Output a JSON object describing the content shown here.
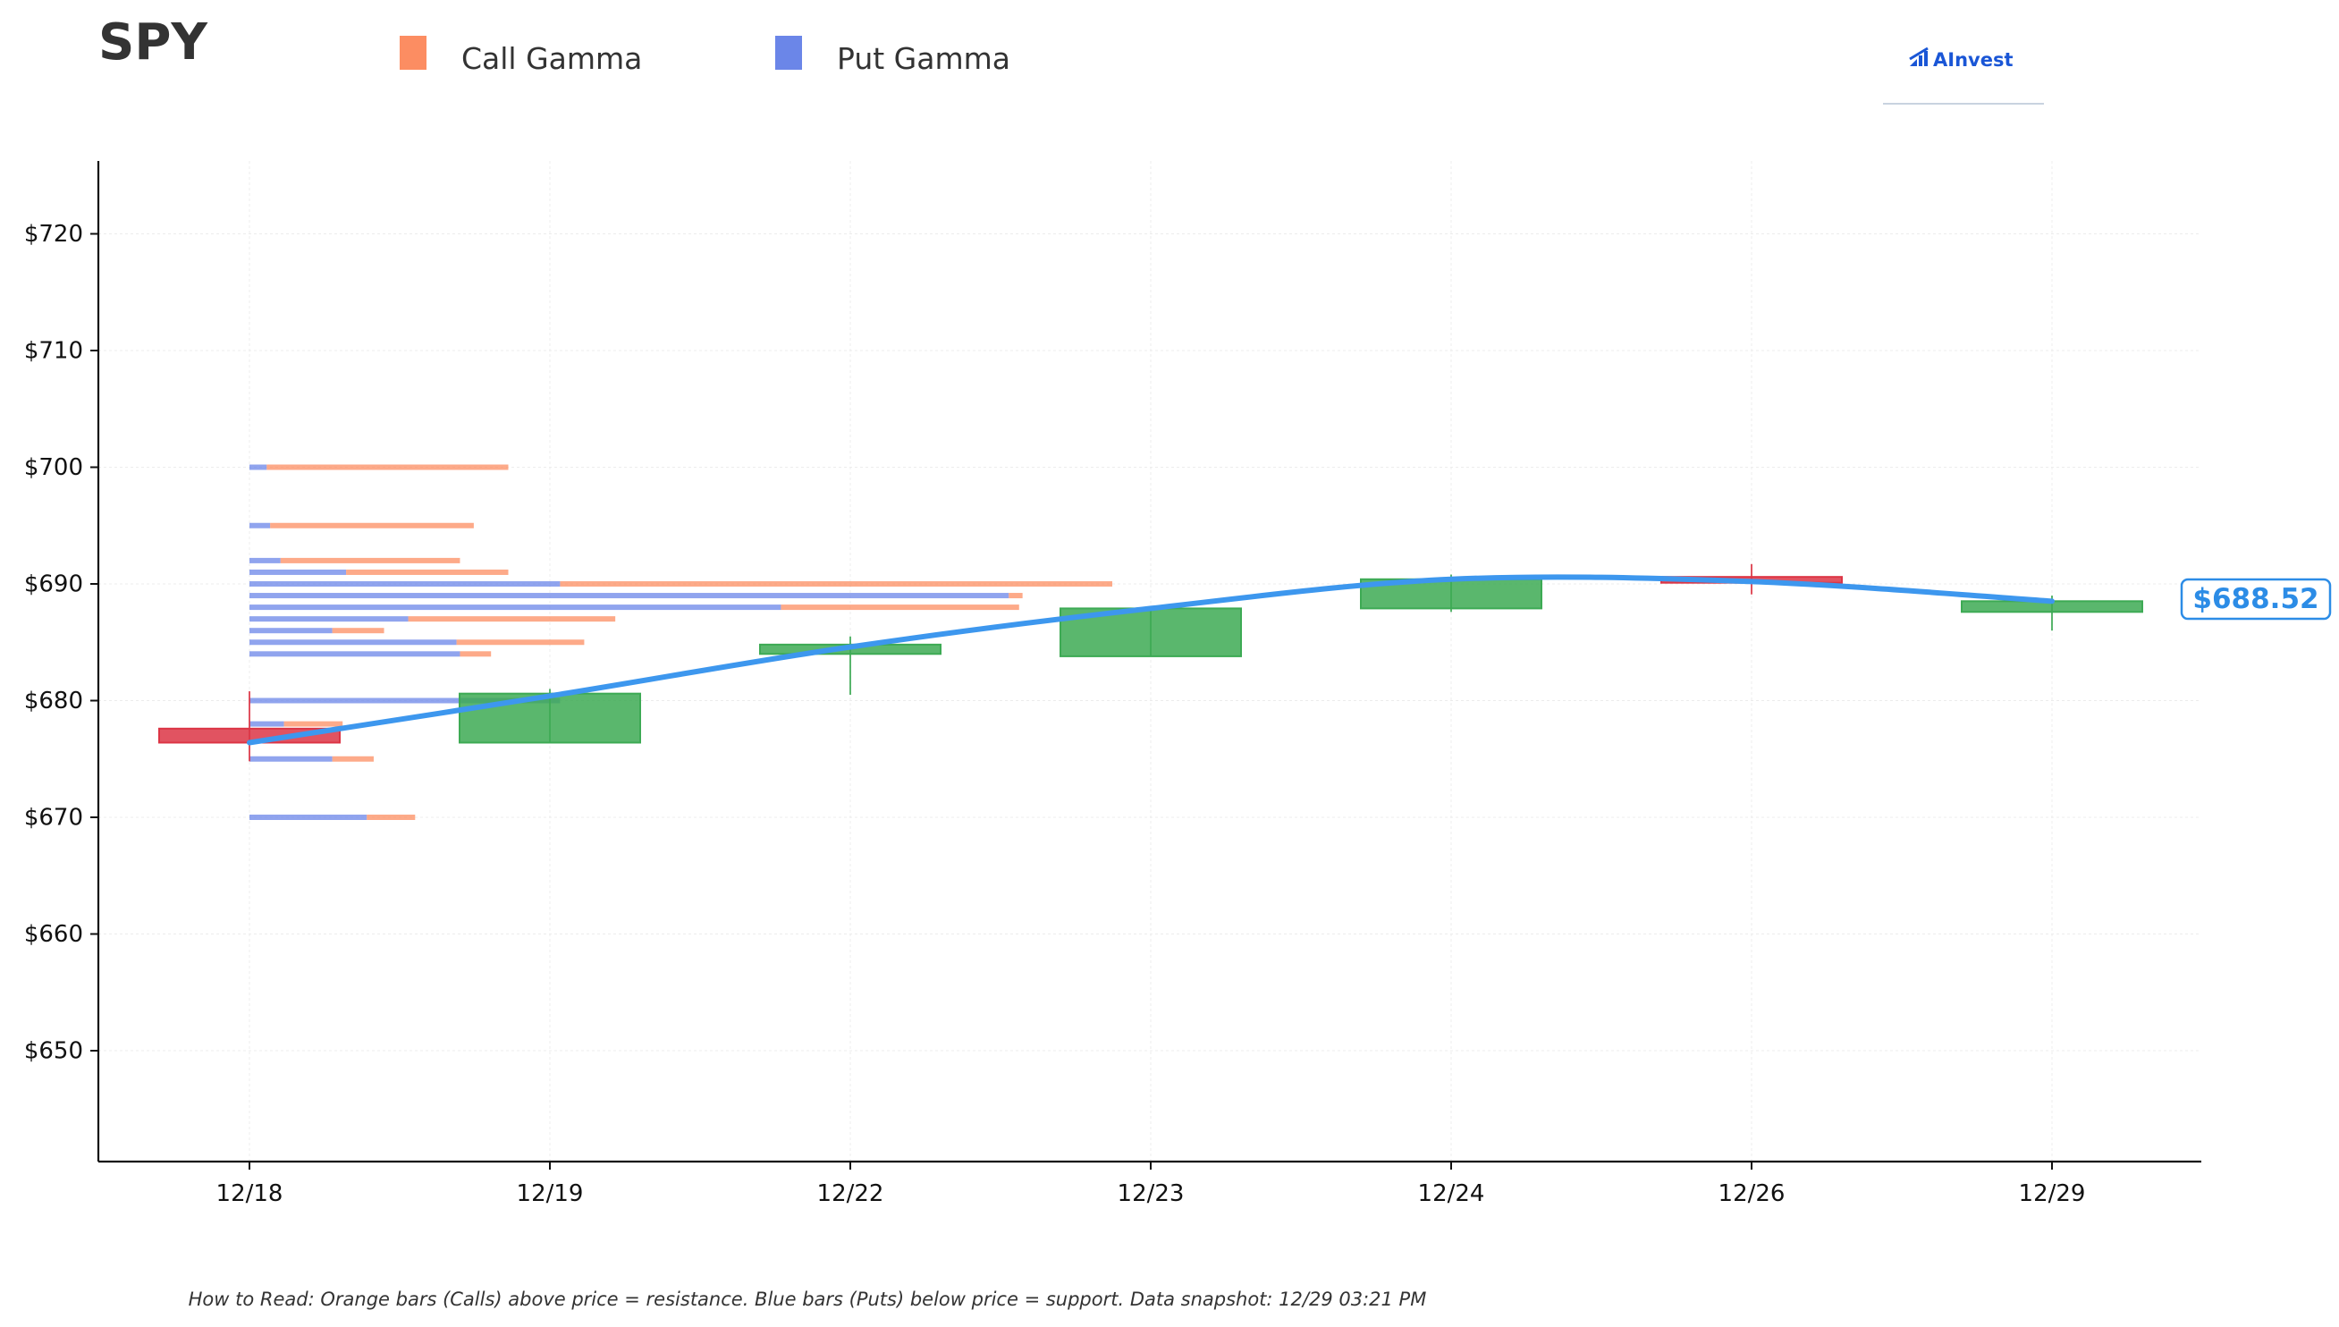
{
  "header": {
    "ticker": "SPY",
    "legend": [
      {
        "label": "Call Gamma",
        "color": "#fc8d62"
      },
      {
        "label": "Put Gamma",
        "color": "#6b86e8"
      }
    ],
    "logo_text": "AInvest"
  },
  "footer": {
    "note": "How to Read: Orange bars (Calls) above price = resistance. Blue bars (Puts) below price = support. Data snapshot: 12/29 03:21 PM"
  },
  "chart_data": {
    "type": "candlestick",
    "title": "SPY",
    "ylim": [
      640.5,
      726
    ],
    "y_ticks": [
      650,
      660,
      670,
      680,
      690,
      700,
      710,
      720
    ],
    "y_tick_labels": [
      "$650",
      "$660",
      "$670",
      "$680",
      "$690",
      "$700",
      "$710",
      "$720"
    ],
    "categories": [
      "12/18",
      "12/19",
      "12/22",
      "12/23",
      "12/24",
      "12/26",
      "12/29"
    ],
    "grid": true,
    "candles": [
      {
        "date": "12/18",
        "open": 677.6,
        "high": 680.8,
        "low": 674.8,
        "close": 676.4
      },
      {
        "date": "12/19",
        "open": 676.4,
        "high": 681.0,
        "low": 676.4,
        "close": 680.6
      },
      {
        "date": "12/22",
        "open": 684.0,
        "high": 685.5,
        "low": 680.5,
        "close": 684.8
      },
      {
        "date": "12/23",
        "open": 683.8,
        "high": 688.0,
        "low": 683.8,
        "close": 687.9
      },
      {
        "date": "12/24",
        "open": 687.9,
        "high": 690.8,
        "low": 687.6,
        "close": 690.4
      },
      {
        "date": "12/26",
        "open": 690.6,
        "high": 691.7,
        "low": 689.1,
        "close": 690.1
      },
      {
        "date": "12/29",
        "open": 687.6,
        "high": 689.0,
        "low": 686.0,
        "close": 688.52
      }
    ],
    "price_line": {
      "color": "#3d97ee",
      "values": [
        676.4,
        680.4,
        684.6,
        687.9,
        690.4,
        690.2,
        688.52
      ]
    },
    "last_price_label": "$688.52",
    "gamma_exposure": {
      "series": [
        {
          "name": "Call Gamma",
          "color": "#fc8d62"
        },
        {
          "name": "Put Gamma",
          "color": "#6b86e8"
        }
      ],
      "strikes": [
        {
          "strike": 700,
          "put": 0.05,
          "call": 0.7
        },
        {
          "strike": 695,
          "put": 0.06,
          "call": 0.59
        },
        {
          "strike": 692,
          "put": 0.09,
          "call": 0.52
        },
        {
          "strike": 691,
          "put": 0.28,
          "call": 0.47
        },
        {
          "strike": 690,
          "put": 0.9,
          "call": 1.6
        },
        {
          "strike": 689,
          "put": 2.2,
          "call": 0.04
        },
        {
          "strike": 688,
          "put": 1.54,
          "call": 0.69
        },
        {
          "strike": 687,
          "put": 0.46,
          "call": 0.6
        },
        {
          "strike": 686,
          "put": 0.24,
          "call": 0.15
        },
        {
          "strike": 685,
          "put": 0.6,
          "call": 0.37
        },
        {
          "strike": 684,
          "put": 0.61,
          "call": 0.09
        },
        {
          "strike": 680,
          "put": 0.9,
          "call": 0.0
        },
        {
          "strike": 678,
          "put": 0.1,
          "call": 0.17
        },
        {
          "strike": 675,
          "put": 0.24,
          "call": 0.12
        },
        {
          "strike": 670,
          "put": 0.34,
          "call": 0.14
        }
      ]
    }
  }
}
